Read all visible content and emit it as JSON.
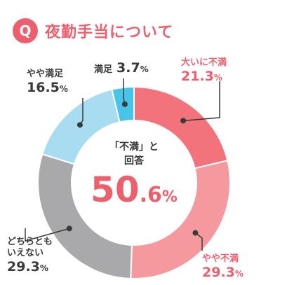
{
  "header": {
    "badge": "Q",
    "title": "夜勤手当について"
  },
  "chart_data": {
    "type": "pie",
    "title": "夜勤手当について",
    "slices": [
      {
        "name": "大いに不満",
        "value": 21.3,
        "color": "#f2737b"
      },
      {
        "name": "やや不満",
        "value": 29.3,
        "color": "#f5999f"
      },
      {
        "name": "どちらともいえない",
        "value": 29.3,
        "color": "#a9a9ab"
      },
      {
        "name": "やや満足",
        "value": 16.5,
        "color": "#a7dcf1"
      },
      {
        "name": "満足",
        "value": 3.7,
        "color": "#45c5ea"
      }
    ]
  },
  "labels": {
    "s0": {
      "name": "大いに不満",
      "pct": "21.3"
    },
    "s1": {
      "name": "やや不満",
      "pct": "29.3"
    },
    "s2": {
      "name_line1": "どちらとも",
      "name_line2": "いえない",
      "pct": "29.3"
    },
    "s3": {
      "name": "やや満足",
      "pct": "16.5"
    },
    "s4": {
      "name": "満足",
      "pct": "3.7"
    }
  },
  "center": {
    "caption_line1": "「不満」と",
    "caption_line2": "回答",
    "value_int": "50",
    "value_dec": ".6",
    "unit": "%"
  },
  "percent_sign": "%"
}
